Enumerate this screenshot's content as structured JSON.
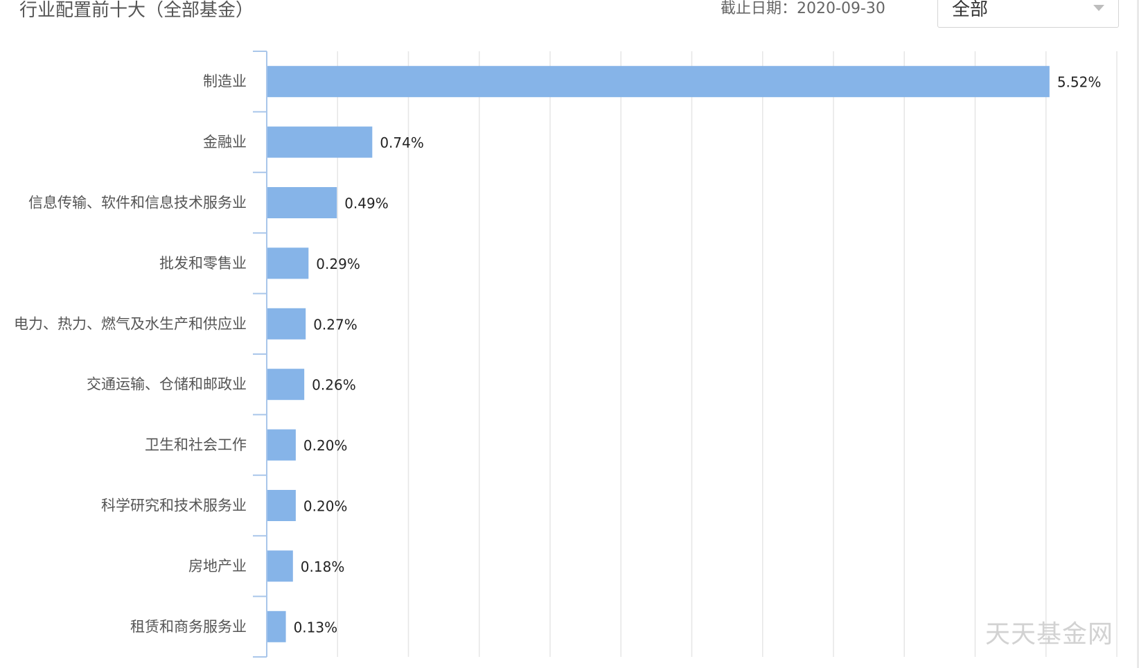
{
  "header": {
    "title": "行业配置前十大（全部基金）",
    "date_label": "截止日期：",
    "date_value": "2020-09-30",
    "filter_selected": "全部"
  },
  "watermark": "天天基金网",
  "colors": {
    "bar": "#86b4e8",
    "axis": "#a9c6ea",
    "grid": "#e6e6e6"
  },
  "chart_data": {
    "type": "bar",
    "orientation": "horizontal",
    "title": "行业配置前十大（全部基金）",
    "categories": [
      "制造业",
      "金融业",
      "信息传输、软件和信息技术服务业",
      "批发和零售业",
      "电力、热力、燃气及水生产和供应业",
      "交通运输、仓储和邮政业",
      "卫生和社会工作",
      "科学研究和技术服务业",
      "房地产业",
      "租赁和商务服务业"
    ],
    "values": [
      5.52,
      0.74,
      0.49,
      0.29,
      0.27,
      0.26,
      0.2,
      0.2,
      0.18,
      0.13
    ],
    "value_labels": [
      "5.52%",
      "0.74%",
      "0.49%",
      "0.29%",
      "0.27%",
      "0.26%",
      "0.20%",
      "0.20%",
      "0.18%",
      "0.13%"
    ],
    "xlim": [
      0,
      6.0
    ],
    "x_grid_step": 0.5,
    "grid": true,
    "legend": "none"
  }
}
